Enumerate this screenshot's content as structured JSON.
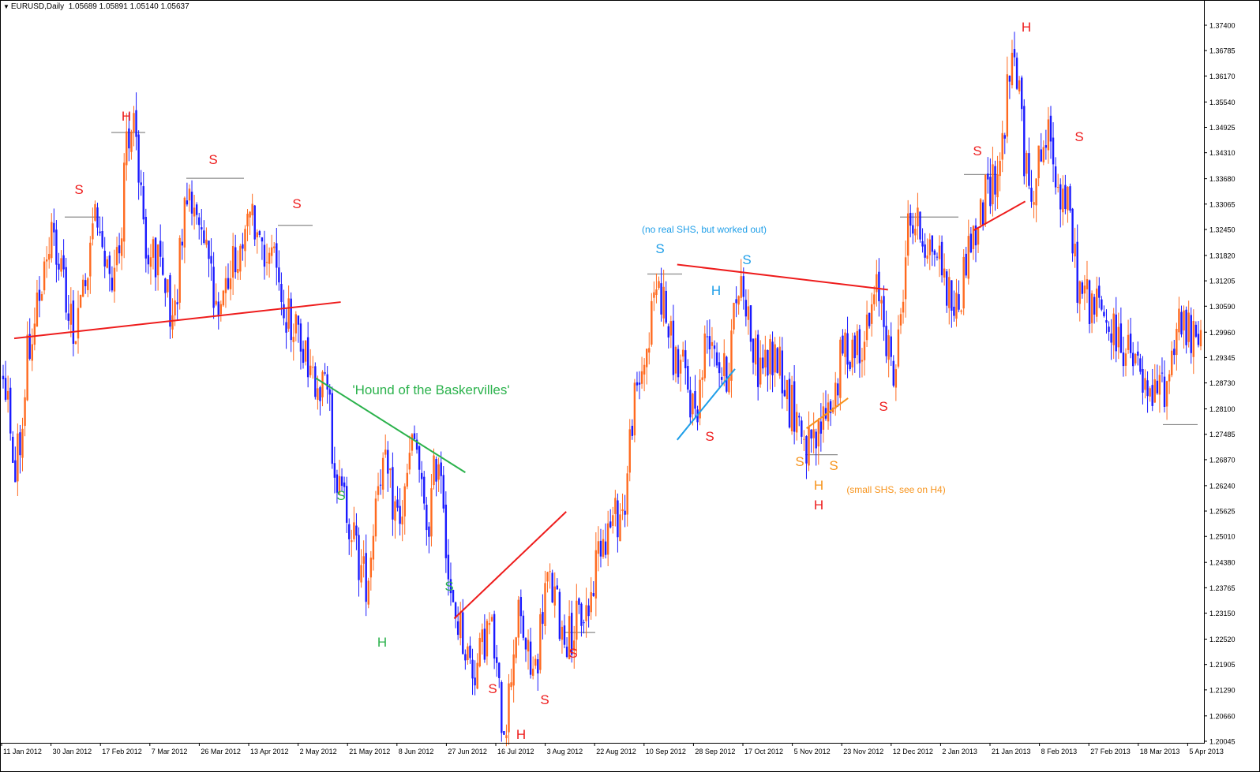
{
  "header": {
    "symbol": "EURUSD,Daily",
    "ohlc": "1.05689 1.05891 1.05140 1.05637"
  },
  "colors": {
    "bull": "#ff6a1f",
    "bear": "#1a1aff",
    "axis": "#000000",
    "red": "#ee1c1c",
    "green": "#2bb24c",
    "lightblue": "#1e9ee8",
    "orange": "#f7941d",
    "level": "#8a8a8a"
  },
  "chart_data": {
    "type": "candlestick",
    "symbol": "EURUSD",
    "timeframe": "Daily",
    "x_labels": [
      "11 Jan 2012",
      "30 Jan 2012",
      "17 Feb 2012",
      "7 Mar 2012",
      "26 Mar 2012",
      "13 Apr 2012",
      "2 May 2012",
      "21 May 2012",
      "8 Jun 2012",
      "27 Jun 2012",
      "16 Jul 2012",
      "3 Aug 2012",
      "22 Aug 2012",
      "10 Sep 2012",
      "28 Sep 2012",
      "17 Oct 2012",
      "5 Nov 2012",
      "23 Nov 2012",
      "12 Dec 2012",
      "2 Jan 2013",
      "21 Jan 2013",
      "8 Feb 2013",
      "27 Feb 2013",
      "18 Mar 2013",
      "5 Apr 2013"
    ],
    "y_ticks": [
      "1.37400",
      "1.36785",
      "1.36170",
      "1.35540",
      "1.34925",
      "1.34310",
      "1.33680",
      "1.33065",
      "1.32450",
      "1.31820",
      "1.31205",
      "1.30590",
      "1.29960",
      "1.29345",
      "1.28730",
      "1.28100",
      "1.27485",
      "1.26870",
      "1.26240",
      "1.25625",
      "1.25010",
      "1.24380",
      "1.23765",
      "1.23150",
      "1.22520",
      "1.21905",
      "1.21290",
      "1.20660",
      "1.20045"
    ],
    "ylim": [
      1.20045,
      1.374
    ],
    "path_points": [
      {
        "x": 0,
        "y": 1.29
      },
      {
        "x": 5,
        "y": 1.268
      },
      {
        "x": 12,
        "y": 1.3
      },
      {
        "x": 20,
        "y": 1.322
      },
      {
        "x": 30,
        "y": 1.3
      },
      {
        "x": 38,
        "y": 1.325
      },
      {
        "x": 46,
        "y": 1.315
      },
      {
        "x": 53,
        "y": 1.349
      },
      {
        "x": 60,
        "y": 1.32
      },
      {
        "x": 70,
        "y": 1.3065
      },
      {
        "x": 77,
        "y": 1.334
      },
      {
        "x": 88,
        "y": 1.309
      },
      {
        "x": 97,
        "y": 1.318
      },
      {
        "x": 104,
        "y": 1.326
      },
      {
        "x": 112,
        "y": 1.3145
      },
      {
        "x": 120,
        "y": 1.3
      },
      {
        "x": 132,
        "y": 1.288
      },
      {
        "x": 140,
        "y": 1.259
      },
      {
        "x": 150,
        "y": 1.24
      },
      {
        "x": 156,
        "y": 1.267
      },
      {
        "x": 164,
        "y": 1.255
      },
      {
        "x": 170,
        "y": 1.2727
      },
      {
        "x": 175,
        "y": 1.253
      },
      {
        "x": 180,
        "y": 1.27
      },
      {
        "x": 186,
        "y": 1.231
      },
      {
        "x": 195,
        "y": 1.218
      },
      {
        "x": 201,
        "y": 1.228
      },
      {
        "x": 207,
        "y": 1.2055
      },
      {
        "x": 213,
        "y": 1.23
      },
      {
        "x": 219,
        "y": 1.217
      },
      {
        "x": 225,
        "y": 1.2385
      },
      {
        "x": 233,
        "y": 1.226
      },
      {
        "x": 241,
        "y": 1.232
      },
      {
        "x": 248,
        "y": 1.251
      },
      {
        "x": 256,
        "y": 1.256
      },
      {
        "x": 261,
        "y": 1.282
      },
      {
        "x": 266,
        "y": 1.2955
      },
      {
        "x": 270,
        "y": 1.311
      },
      {
        "x": 279,
        "y": 1.292
      },
      {
        "x": 286,
        "y": 1.2815
      },
      {
        "x": 292,
        "y": 1.3005
      },
      {
        "x": 298,
        "y": 1.289
      },
      {
        "x": 305,
        "y": 1.312
      },
      {
        "x": 312,
        "y": 1.2915
      },
      {
        "x": 320,
        "y": 1.2935
      },
      {
        "x": 326,
        "y": 1.2815
      },
      {
        "x": 334,
        "y": 1.2705
      },
      {
        "x": 342,
        "y": 1.2825
      },
      {
        "x": 348,
        "y": 1.2955
      },
      {
        "x": 356,
        "y": 1.2985
      },
      {
        "x": 362,
        "y": 1.3095
      },
      {
        "x": 368,
        "y": 1.2895
      },
      {
        "x": 375,
        "y": 1.3265
      },
      {
        "x": 384,
        "y": 1.3205
      },
      {
        "x": 394,
        "y": 1.3055
      },
      {
        "x": 400,
        "y": 1.322
      },
      {
        "x": 410,
        "y": 1.3375
      },
      {
        "x": 418,
        "y": 1.365
      },
      {
        "x": 424,
        "y": 1.3355
      },
      {
        "x": 432,
        "y": 1.346
      },
      {
        "x": 438,
        "y": 1.333
      },
      {
        "x": 446,
        "y": 1.309
      },
      {
        "x": 452,
        "y": 1.3055
      },
      {
        "x": 460,
        "y": 1.2985
      },
      {
        "x": 468,
        "y": 1.2915
      },
      {
        "x": 474,
        "y": 1.2825
      },
      {
        "x": 480,
        "y": 1.287
      },
      {
        "x": 486,
        "y": 1.3025
      },
      {
        "x": 492,
        "y": 1.297
      }
    ],
    "annotations": [
      {
        "label": "S",
        "color": "red",
        "x": "around 30 Jan 2012"
      },
      {
        "label": "H",
        "color": "red",
        "x": "around 17 Feb 2012"
      },
      {
        "label": "S",
        "color": "red",
        "x": "around 26 Mar 2012"
      },
      {
        "label": "S",
        "color": "red",
        "x": "around 13 Apr 2012"
      },
      {
        "label": "'Hound of the Baskervilles'",
        "color": "green",
        "x": "around 21 May 2012"
      },
      {
        "label": "S",
        "color": "green",
        "x": "around 21 May 2012"
      },
      {
        "label": "H",
        "color": "green",
        "x": "around 8 Jun 2012"
      },
      {
        "label": "S",
        "color": "green",
        "x": "around 27 Jun 2012"
      },
      {
        "label": "S",
        "color": "red",
        "x": "around 16 Jul 2012"
      },
      {
        "label": "H",
        "color": "red",
        "x": "around 16 Jul 2012"
      },
      {
        "label": "S",
        "color": "red",
        "x": "around 3 Aug 2012"
      },
      {
        "label": "S",
        "color": "red",
        "x": "around 3 Aug 2012"
      },
      {
        "label": "(no real SHS, but worked out)",
        "color": "lightblue",
        "x": "around 28 Sep 2012"
      },
      {
        "label": "S",
        "color": "lightblue",
        "x": "around 10 Sep 2012"
      },
      {
        "label": "H",
        "color": "lightblue",
        "x": "around 28 Sep 2012"
      },
      {
        "label": "S",
        "color": "lightblue",
        "x": "around 17 Oct 2012"
      },
      {
        "label": "S",
        "color": "red",
        "x": "around 28 Sep 2012"
      },
      {
        "label": "S",
        "color": "orange",
        "x": "around 5 Nov 2012"
      },
      {
        "label": "H",
        "color": "orange",
        "x": "around 5 Nov 2012"
      },
      {
        "label": "S",
        "color": "orange",
        "x": "around 5 Nov 2012"
      },
      {
        "label": "H",
        "color": "red",
        "x": "around 5 Nov 2012"
      },
      {
        "label": "(small SHS, see on H4)",
        "color": "orange",
        "x": "around 23 Nov 2012"
      },
      {
        "label": "S",
        "color": "red",
        "x": "around 23 Nov 2012"
      },
      {
        "label": "S",
        "color": "red",
        "x": "around 2 Jan 2013"
      },
      {
        "label": "H",
        "color": "red",
        "x": "around 21 Jan 2013"
      },
      {
        "label": "S",
        "color": "red",
        "x": "around 8 Feb 2013"
      }
    ],
    "neckline_lines": [
      {
        "color": "red",
        "from": {
          "date": "11 Jan 2012",
          "price": 1.2981
        },
        "to": {
          "date": "2 May 2012",
          "price": 1.3069
        }
      },
      {
        "color": "green",
        "from": {
          "date": "2 May 2012",
          "price": 1.2885
        },
        "to": {
          "date": "27 Jun 2012",
          "price": 1.2656
        }
      },
      {
        "color": "red",
        "from": {
          "date": "27 Jun 2012",
          "price": 1.2302
        },
        "to": {
          "date": "22 Aug 2012",
          "price": 1.2561
        }
      },
      {
        "color": "lightblue",
        "from": {
          "date": "10 Sep 2012",
          "price": 1.2735
        },
        "to": {
          "date": "17 Oct 2012",
          "price": 1.2907
        }
      },
      {
        "color": "red",
        "from": {
          "date": "10 Sep 2012",
          "price": 1.316
        },
        "to": {
          "date": "12 Dec 2012",
          "price": 1.3099
        }
      },
      {
        "color": "orange",
        "from": {
          "date": "5 Nov 2012",
          "price": 1.2763
        },
        "to": {
          "date": "23 Nov 2012",
          "price": 1.2836
        }
      },
      {
        "color": "red",
        "from": {
          "date": "2 Jan 2013",
          "price": 1.3243
        },
        "to": {
          "date": "8 Feb 2013",
          "price": 1.3313
        }
      }
    ],
    "levels": [
      {
        "price": 1.3275
      },
      {
        "price": 1.348
      },
      {
        "price": 1.3369
      },
      {
        "price": 1.3255
      },
      {
        "price": 1.2268
      },
      {
        "price": 1.3137
      },
      {
        "price": 1.2699
      },
      {
        "price": 1.3275
      },
      {
        "price": 1.3378
      },
      {
        "price": 1.2772
      }
    ]
  }
}
